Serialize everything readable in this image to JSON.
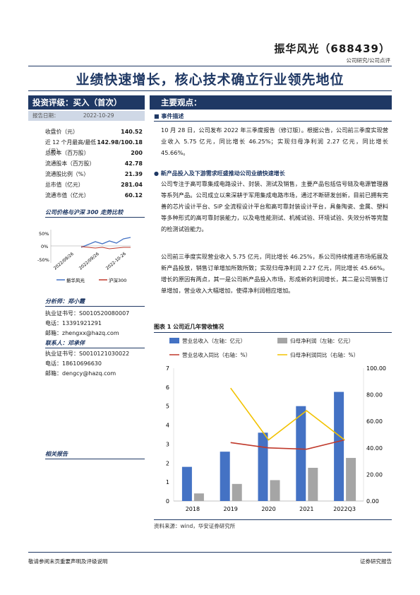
{
  "header": {
    "company": "振华风光（688439）",
    "report_type": "公司研究/公司点评",
    "title": "业绩快速增长，核心技术确立行业领先地位"
  },
  "left": {
    "rating_label": "投资评级：买入（首次）",
    "date_label": "报告日期：",
    "date_value": "2022-10-29",
    "metrics": [
      {
        "label": "收盘价（元）",
        "value": "140.52"
      },
      {
        "label": "近 12 个月最高/最低（元）",
        "value": "142.98/100.18"
      },
      {
        "label": "总股本（百万股）",
        "value": "200"
      },
      {
        "label": "流通股本（百万股）",
        "value": "42.78"
      },
      {
        "label": "流通股比例（%）",
        "value": "21.39"
      },
      {
        "label": "总市值（亿元）",
        "value": "281.04"
      },
      {
        "label": "流通市值（亿元）",
        "value": "60.12"
      }
    ],
    "price_chart_title": "公司价格与沪深 300 走势比较",
    "mini_chart": {
      "yticks": [
        "50%",
        "0%",
        "-50%"
      ],
      "xticks": [
        "2022/09/26",
        "2022/09/26",
        "2022-10-26"
      ],
      "legend": [
        "振华风光",
        "沪深300"
      ]
    },
    "analyst_label": "分析师：郑小霞",
    "analyst_cert": "执业证书号：S0010520080007",
    "analyst_phone": "电话：13391921291",
    "analyst_email": "邮箱：zhengxx@hazq.com",
    "contact_label": "联系人：邓承佯",
    "contact_cert": "执业证书号：S0010121030022",
    "contact_phone": "电话：18610696630",
    "contact_email": "邮箱：dengcy@hazq.com",
    "related": "相关报告"
  },
  "main": {
    "heading": "主要观点：",
    "event_title": "事件描述",
    "event_text": "10 月 28 日，公司发布 2022 年三季度报告（修订版）。根据公告，公司前三季度实现营业收入 5.75 亿元，同比增长 46.25%；实现归母净利润 2.27 亿元，同比增长 45.66%。",
    "bullet_title": "新产品投入及下游需求旺盛推动公司业绩快速增长",
    "bullet_text": "公司专注于高可靠集成电路设计、封装、测试及销售，主要产品包括信号链及电源管理器等系列产品。公司成立以来深耕于军用集成电路市场，通过不断研发创新，目前已拥有完善的芯片设计平台、SiP 全流程设计平台和高可靠封装设计平台，具备陶瓷、金属、塑料等多种形式的高可靠封装能力，以及电性能测试、机械试验、环境试验、失效分析等完整的检测试验能力。",
    "para2": "公司前三季度实现营业收入 5.75 亿元，同比增长 46.25%，系公司持续推进市场拓展及新产品投放，销售订单增加所致所致；实现归母净利润 2.27 亿元，同比增长 45.66%。增长的原因有两点，其一是公司新产品投入市场，形成新的利润增长，其二是公司销售订单增加，营业收入大幅增加，使得净利润相应增加。",
    "figure_title": "图表 1 公司近几年营收情况",
    "source": "资料来源：wind，华安证券研究所"
  },
  "footer": {
    "left": "敬请参阅末页重要声明及评级说明",
    "right": "证券研究报告"
  },
  "chart_data": {
    "type": "bar",
    "categories": [
      "2018",
      "2019",
      "2020",
      "2021",
      "2022Q3"
    ],
    "series": [
      {
        "name": "营业总收入（左轴：亿元）",
        "axis": "left",
        "kind": "bar",
        "color": "#4472c4",
        "values": [
          1.8,
          2.6,
          3.6,
          5.0,
          5.75
        ]
      },
      {
        "name": "归母净利润（左轴：亿元）",
        "axis": "left",
        "kind": "bar",
        "color": "#a5a5a5",
        "values": [
          0.4,
          0.9,
          1.1,
          1.75,
          2.27
        ]
      },
      {
        "name": "营业总收入同比（右轴：%）",
        "axis": "right",
        "kind": "line",
        "color": "#c0392b",
        "values": [
          null,
          44,
          40,
          39,
          46
        ]
      },
      {
        "name": "归母净利润同比（右轴：%）",
        "axis": "right",
        "kind": "line",
        "color": "#f2c200",
        "values": [
          null,
          85,
          46,
          68,
          46
        ]
      }
    ],
    "ylim_left": [
      0,
      7
    ],
    "ylim_right": [
      0,
      100
    ],
    "yticks_left": [
      "0",
      "1",
      "2",
      "3",
      "4",
      "5",
      "6",
      "7"
    ],
    "yticks_right": [
      "0.00",
      "20.00",
      "40.00",
      "60.00",
      "80.00",
      "100.00"
    ],
    "legend_position": "top"
  }
}
